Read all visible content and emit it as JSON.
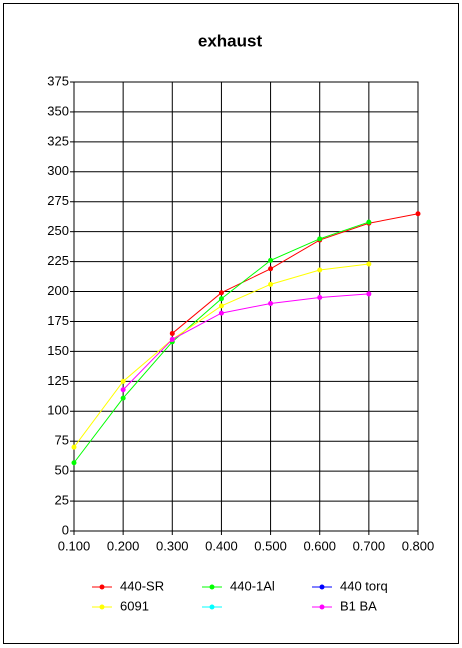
{
  "chart_data": {
    "type": "line",
    "title": "exhaust",
    "xlim": [
      0.1,
      0.8
    ],
    "xticks": [
      {
        "value": 0.1,
        "label": "0.100"
      },
      {
        "value": 0.2,
        "label": "0.200"
      },
      {
        "value": 0.3,
        "label": "0.300"
      },
      {
        "value": 0.4,
        "label": "0.400"
      },
      {
        "value": 0.5,
        "label": "0.500"
      },
      {
        "value": 0.6,
        "label": "0.600"
      },
      {
        "value": 0.7,
        "label": "0.700"
      },
      {
        "value": 0.8,
        "label": "0.800"
      }
    ],
    "ylim": [
      0,
      375
    ],
    "yticks": [
      0,
      25,
      50,
      75,
      100,
      125,
      150,
      175,
      200,
      225,
      250,
      275,
      300,
      325,
      350,
      375
    ],
    "grid": true,
    "series": [
      {
        "name": "440-SR",
        "color": "#ff0000",
        "x": [
          0.3,
          0.4,
          0.5,
          0.6,
          0.7,
          0.8
        ],
        "values": [
          165,
          199,
          219,
          243,
          257,
          265
        ]
      },
      {
        "name": "440-1Al",
        "color": "#00ff00",
        "x": [
          0.1,
          0.2,
          0.3,
          0.4,
          0.5,
          0.6,
          0.7
        ],
        "values": [
          57,
          111,
          158,
          194,
          226,
          244,
          258
        ]
      },
      {
        "name": "440 torq",
        "color": "#0000ff",
        "x": [],
        "values": []
      },
      {
        "name": "6091",
        "color": "#ffff00",
        "x": [
          0.1,
          0.2,
          0.3,
          0.4,
          0.5,
          0.6,
          0.7
        ],
        "values": [
          70,
          125,
          160,
          188,
          206,
          218,
          223
        ]
      },
      {
        "name": null,
        "color": "#00ffff",
        "x": [],
        "values": []
      },
      {
        "name": "B1 BA",
        "color": "#ff00ff",
        "x": [
          0.2,
          0.3,
          0.4,
          0.5,
          0.6,
          0.7
        ],
        "values": [
          118,
          160,
          182,
          190,
          195,
          198
        ]
      }
    ]
  }
}
